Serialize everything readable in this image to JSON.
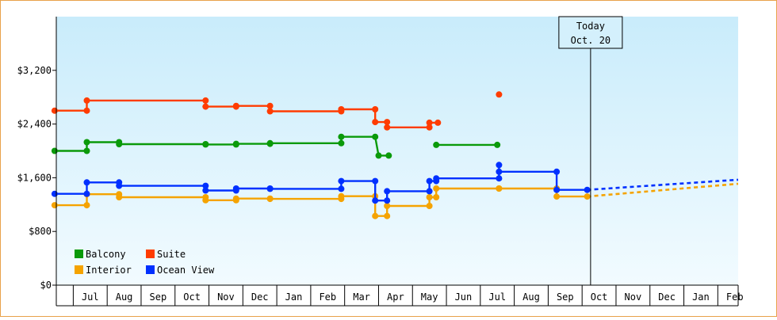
{
  "chart_data": {
    "type": "line",
    "ylim": [
      0,
      4000
    ],
    "y_ticks": [
      {
        "value": 0,
        "label": "$0"
      },
      {
        "value": 800,
        "label": "$800"
      },
      {
        "value": 1600,
        "label": "$1,600"
      },
      {
        "value": 2400,
        "label": "$2,400"
      },
      {
        "value": 3200,
        "label": "$3,200"
      }
    ],
    "x_range": [
      0,
      20.1
    ],
    "x_ticks": [
      "Jul",
      "Aug",
      "Sep",
      "Oct",
      "Nov",
      "Dec",
      "Jan",
      "Feb",
      "Mar",
      "Apr",
      "May",
      "Jun",
      "Jul",
      "Aug",
      "Sep",
      "Oct",
      "Nov",
      "Dec",
      "Jan",
      "Feb"
    ],
    "today": {
      "label_line1": "Today",
      "label_line2": "Oct. 20",
      "x": 15.75
    },
    "legend": {
      "position": "bottom-left",
      "columns": 2
    },
    "colors": {
      "Balcony": "#0a9a0a",
      "Suite": "#ff3c00",
      "Interior": "#f5a300",
      "Ocean View": "#0030ff",
      "plot_bg_top": "#c9ecfb",
      "plot_bg_bottom": "#f2fbff",
      "frame": "#e8a24a"
    },
    "series": [
      {
        "name": "Balcony",
        "segments": [
          [
            [
              -0.05,
              2000
            ],
            [
              0.9,
              2000
            ],
            [
              0.9,
              2130
            ],
            [
              1.85,
              2130
            ],
            [
              1.85,
              2100
            ],
            [
              4.4,
              2100
            ],
            [
              4.4,
              2095
            ],
            [
              5.3,
              2095
            ],
            [
              5.3,
              2105
            ],
            [
              6.3,
              2105
            ],
            [
              6.3,
              2115
            ],
            [
              8.4,
              2115
            ],
            [
              8.4,
              2210
            ],
            [
              9.4,
              2210
            ],
            [
              9.5,
              1930
            ],
            [
              9.8,
              1930
            ]
          ],
          [
            [
              11.2,
              2090
            ],
            [
              13.0,
              2090
            ]
          ]
        ]
      },
      {
        "name": "Suite",
        "segments": [
          [
            [
              -0.05,
              2600
            ],
            [
              0.9,
              2600
            ],
            [
              0.9,
              2750
            ],
            [
              4.4,
              2750
            ],
            [
              4.4,
              2660
            ],
            [
              5.3,
              2660
            ],
            [
              5.3,
              2670
            ],
            [
              6.3,
              2670
            ],
            [
              6.3,
              2590
            ],
            [
              8.4,
              2590
            ],
            [
              8.4,
              2620
            ],
            [
              9.4,
              2620
            ],
            [
              9.4,
              2430
            ],
            [
              9.75,
              2430
            ],
            [
              9.75,
              2350
            ],
            [
              11.0,
              2350
            ],
            [
              11.0,
              2420
            ],
            [
              11.25,
              2420
            ]
          ],
          [
            [
              13.05,
              2840
            ]
          ]
        ]
      },
      {
        "name": "Interior",
        "segments": [
          [
            [
              -0.05,
              1190
            ],
            [
              0.9,
              1190
            ],
            [
              0.9,
              1355
            ],
            [
              1.85,
              1355
            ],
            [
              1.85,
              1310
            ],
            [
              4.4,
              1310
            ],
            [
              4.4,
              1265
            ],
            [
              5.3,
              1265
            ],
            [
              5.3,
              1290
            ],
            [
              6.3,
              1290
            ],
            [
              6.3,
              1285
            ],
            [
              8.4,
              1285
            ],
            [
              8.4,
              1325
            ],
            [
              9.4,
              1325
            ],
            [
              9.4,
              1030
            ],
            [
              9.75,
              1030
            ],
            [
              9.75,
              1180
            ],
            [
              11.0,
              1180
            ],
            [
              11.0,
              1310
            ],
            [
              11.2,
              1310
            ],
            [
              11.2,
              1440
            ],
            [
              13.05,
              1440
            ],
            [
              13.05,
              1440
            ],
            [
              14.75,
              1440
            ],
            [
              14.75,
              1320
            ],
            [
              15.65,
              1320
            ]
          ]
        ]
      },
      {
        "name": "Ocean View",
        "segments": [
          [
            [
              -0.05,
              1360
            ],
            [
              0.9,
              1360
            ],
            [
              0.9,
              1530
            ],
            [
              1.85,
              1530
            ],
            [
              1.85,
              1480
            ],
            [
              4.4,
              1480
            ],
            [
              4.4,
              1410
            ],
            [
              5.3,
              1410
            ],
            [
              5.3,
              1440
            ],
            [
              6.3,
              1440
            ],
            [
              6.3,
              1435
            ],
            [
              8.4,
              1435
            ],
            [
              8.4,
              1550
            ],
            [
              9.4,
              1550
            ],
            [
              9.4,
              1260
            ],
            [
              9.75,
              1260
            ],
            [
              9.75,
              1400
            ],
            [
              11.0,
              1400
            ],
            [
              11.0,
              1550
            ],
            [
              11.2,
              1550
            ],
            [
              11.2,
              1590
            ],
            [
              13.05,
              1590
            ],
            [
              13.05,
              1790
            ],
            [
              13.05,
              1690
            ],
            [
              14.75,
              1690
            ],
            [
              14.75,
              1420
            ],
            [
              15.65,
              1420
            ]
          ]
        ]
      }
    ],
    "forecast": [
      {
        "name": "Ocean View",
        "points": [
          [
            15.65,
            1420
          ],
          [
            20.1,
            1570
          ]
        ]
      },
      {
        "name": "Interior",
        "points": [
          [
            15.65,
            1320
          ],
          [
            20.1,
            1510
          ]
        ]
      }
    ]
  }
}
